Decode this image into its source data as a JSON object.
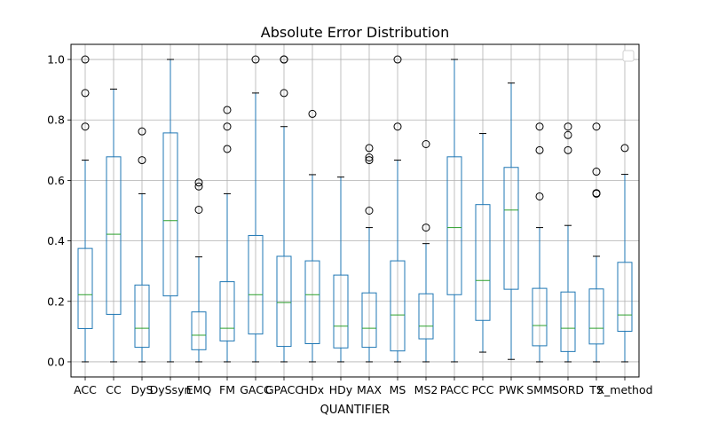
{
  "chart_data": {
    "type": "box",
    "title": "Absolute Error Distribution",
    "xlabel": "QUANTIFIER",
    "ylabel": "",
    "ylim": [
      -0.05,
      1.05
    ],
    "yticks": [
      0.0,
      0.2,
      0.4,
      0.6,
      0.8,
      1.0
    ],
    "ytick_labels": [
      "0.0",
      "0.2",
      "0.4",
      "0.6",
      "0.8",
      "1.0"
    ],
    "grid": true,
    "legend": "top-right (empty)",
    "colors": {
      "box": "#1f77b4",
      "median": "#2ca02c",
      "grid": "#b0b0b0",
      "outlier": "#000000"
    },
    "categories": [
      "ACC",
      "CC",
      "DyS",
      "DySsyn",
      "EMQ",
      "FM",
      "GACC",
      "GPACC",
      "HDx",
      "HDy",
      "MAX",
      "MS",
      "MS2",
      "PACC",
      "PCC",
      "PWK",
      "SMM",
      "SORD",
      "TS",
      "X_method"
    ],
    "boxes": [
      {
        "whislo": 0.0,
        "q1": 0.11,
        "med": 0.222,
        "q3": 0.375,
        "whishi": 0.667,
        "fliers": [
          0.778,
          0.889,
          1.0
        ]
      },
      {
        "whislo": 0.0,
        "q1": 0.157,
        "med": 0.422,
        "q3": 0.678,
        "whishi": 0.902,
        "fliers": []
      },
      {
        "whislo": 0.0,
        "q1": 0.048,
        "med": 0.111,
        "q3": 0.254,
        "whishi": 0.556,
        "fliers": [
          0.667,
          0.762
        ]
      },
      {
        "whislo": 0.0,
        "q1": 0.218,
        "med": 0.467,
        "q3": 0.757,
        "whishi": 1.0,
        "fliers": []
      },
      {
        "whislo": 0.0,
        "q1": 0.04,
        "med": 0.088,
        "q3": 0.165,
        "whishi": 0.347,
        "fliers": [
          0.503,
          0.58,
          0.593
        ]
      },
      {
        "whislo": 0.0,
        "q1": 0.069,
        "med": 0.111,
        "q3": 0.265,
        "whishi": 0.556,
        "fliers": [
          0.704,
          0.778,
          0.833
        ]
      },
      {
        "whislo": 0.0,
        "q1": 0.092,
        "med": 0.222,
        "q3": 0.418,
        "whishi": 0.889,
        "fliers": [
          1.0
        ]
      },
      {
        "whislo": 0.0,
        "q1": 0.051,
        "med": 0.196,
        "q3": 0.349,
        "whishi": 0.778,
        "fliers": [
          0.889,
          1.0,
          1.0
        ]
      },
      {
        "whislo": 0.0,
        "q1": 0.06,
        "med": 0.222,
        "q3": 0.334,
        "whishi": 0.619,
        "fliers": [
          0.82
        ]
      },
      {
        "whislo": 0.0,
        "q1": 0.046,
        "med": 0.118,
        "q3": 0.287,
        "whishi": 0.611,
        "fliers": []
      },
      {
        "whislo": 0.0,
        "q1": 0.048,
        "med": 0.111,
        "q3": 0.228,
        "whishi": 0.444,
        "fliers": [
          0.5,
          0.667,
          0.676,
          0.707
        ]
      },
      {
        "whislo": 0.0,
        "q1": 0.036,
        "med": 0.155,
        "q3": 0.334,
        "whishi": 0.667,
        "fliers": [
          0.778,
          1.0
        ]
      },
      {
        "whislo": 0.0,
        "q1": 0.076,
        "med": 0.118,
        "q3": 0.225,
        "whishi": 0.391,
        "fliers": [
          0.444,
          0.72
        ]
      },
      {
        "whislo": 0.0,
        "q1": 0.222,
        "med": 0.444,
        "q3": 0.678,
        "whishi": 1.0,
        "fliers": []
      },
      {
        "whislo": 0.032,
        "q1": 0.137,
        "med": 0.269,
        "q3": 0.52,
        "whishi": 0.755,
        "fliers": []
      },
      {
        "whislo": 0.008,
        "q1": 0.24,
        "med": 0.502,
        "q3": 0.643,
        "whishi": 0.922,
        "fliers": []
      },
      {
        "whislo": 0.0,
        "q1": 0.053,
        "med": 0.12,
        "q3": 0.243,
        "whishi": 0.444,
        "fliers": [
          0.547,
          0.7,
          0.778
        ]
      },
      {
        "whislo": 0.0,
        "q1": 0.034,
        "med": 0.111,
        "q3": 0.231,
        "whishi": 0.451,
        "fliers": [
          0.7,
          0.75,
          0.778
        ]
      },
      {
        "whislo": 0.0,
        "q1": 0.059,
        "med": 0.111,
        "q3": 0.241,
        "whishi": 0.349,
        "fliers": [
          0.556,
          0.558,
          0.629,
          0.778
        ]
      },
      {
        "whislo": 0.0,
        "q1": 0.101,
        "med": 0.155,
        "q3": 0.329,
        "whishi": 0.62,
        "fliers": [
          0.707
        ]
      }
    ]
  }
}
